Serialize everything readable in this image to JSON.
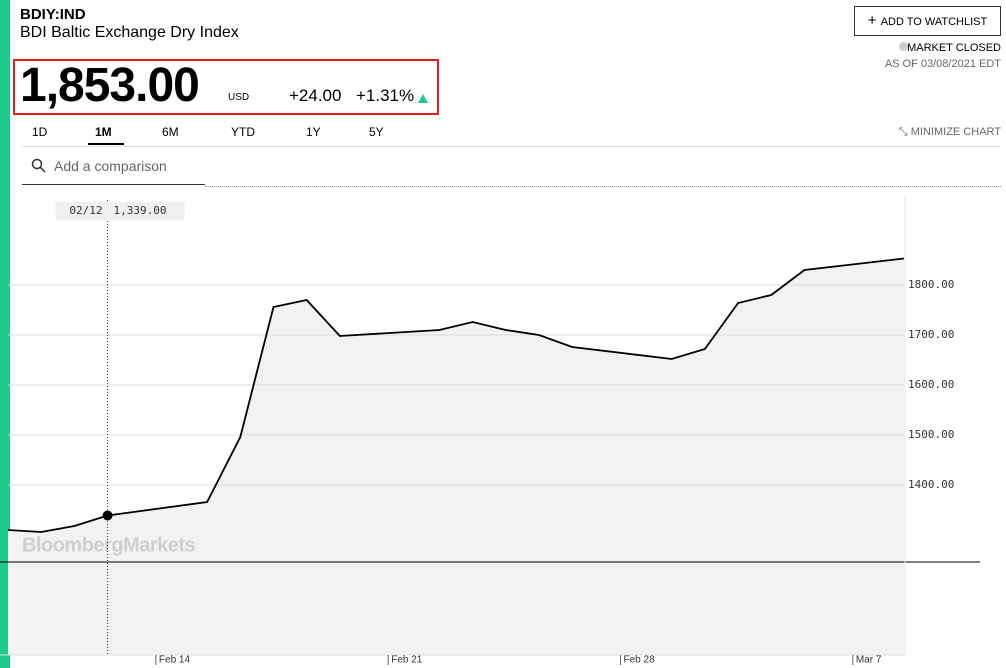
{
  "header": {
    "ticker": "BDIY:IND",
    "name": "BDI Baltic Exchange Dry Index",
    "price": "1,853.00",
    "currency": "USD",
    "change": "+24.00",
    "change_percent": "+1.31%",
    "watchlist_button": "ADD TO WATCHLIST",
    "market_status": "MARKET CLOSED",
    "as_of": "AS OF 03/08/2021 EDT"
  },
  "controls": {
    "ranges": [
      "1D",
      "1M",
      "6M",
      "YTD",
      "1Y",
      "5Y"
    ],
    "selected_range": "1M",
    "minimize": "MINIMIZE CHART",
    "comparison_placeholder": "Add a comparison"
  },
  "chart_data": {
    "type": "line",
    "watermark": "BloombergMarkets",
    "x": [
      "Feb 9",
      "Feb 10",
      "Feb 11",
      "Feb 12",
      "Feb 15",
      "Feb 16",
      "Feb 17",
      "Feb 18",
      "Feb 19",
      "Feb 22",
      "Feb 23",
      "Feb 24",
      "Feb 25",
      "Feb 26",
      "Mar 1",
      "Mar 2",
      "Mar 3",
      "Mar 4",
      "Mar 5",
      "Mar 8"
    ],
    "series": [
      {
        "color": "#000000",
        "values": [
          1310,
          1306,
          1318,
          1339,
          1366,
          1496,
          1756,
          1770,
          1698,
          1710,
          1726,
          1710,
          1700,
          1676,
          1652,
          1672,
          1764,
          1780,
          1830,
          1853
        ]
      }
    ],
    "xlim": [
      "Feb 9",
      "Mar 8"
    ],
    "xticks": [
      "Feb 14",
      "Feb 21",
      "Feb 28",
      "Mar 7"
    ],
    "ylim": [
      1060,
      1980
    ],
    "yticks": [
      {
        "value": 1400,
        "label": "1400.00"
      },
      {
        "value": 1500,
        "label": "1500.00"
      },
      {
        "value": 1600,
        "label": "1600.00"
      },
      {
        "value": 1700,
        "label": "1700.00"
      },
      {
        "value": 1800,
        "label": "1800.00"
      }
    ],
    "grid": true,
    "reference_line": 1246,
    "crosshair": {
      "x": "Feb 12",
      "y": 1339,
      "date_label": "02/12",
      "value_label": "1,339.00"
    }
  }
}
